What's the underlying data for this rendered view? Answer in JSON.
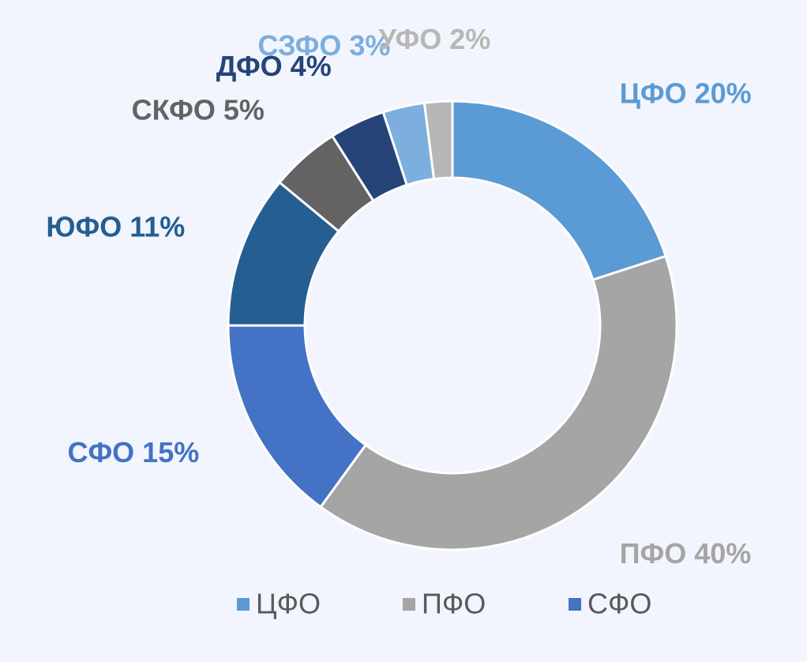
{
  "chart_data": {
    "type": "donut",
    "categories": [
      "ЦФО",
      "ПФО",
      "СФО",
      "ЮФО",
      "СКФО",
      "ДФО",
      "СЗФО",
      "УФО"
    ],
    "values": [
      20,
      40,
      15,
      11,
      5,
      4,
      3,
      2
    ],
    "value_labels": [
      "ЦФО 20%",
      "ПФО 40%",
      "СФО 15%",
      "ЮФО 11%",
      "СКФО 5%",
      "ДФО 4%",
      "СЗФО 3%",
      "УФО 2%"
    ],
    "colors": [
      "#5b9bd5",
      "#a5a5a5",
      "#4472c4",
      "#255e91",
      "#636363",
      "#264478",
      "#7cafdd",
      "#b7b7b7"
    ],
    "legend": true
  }
}
